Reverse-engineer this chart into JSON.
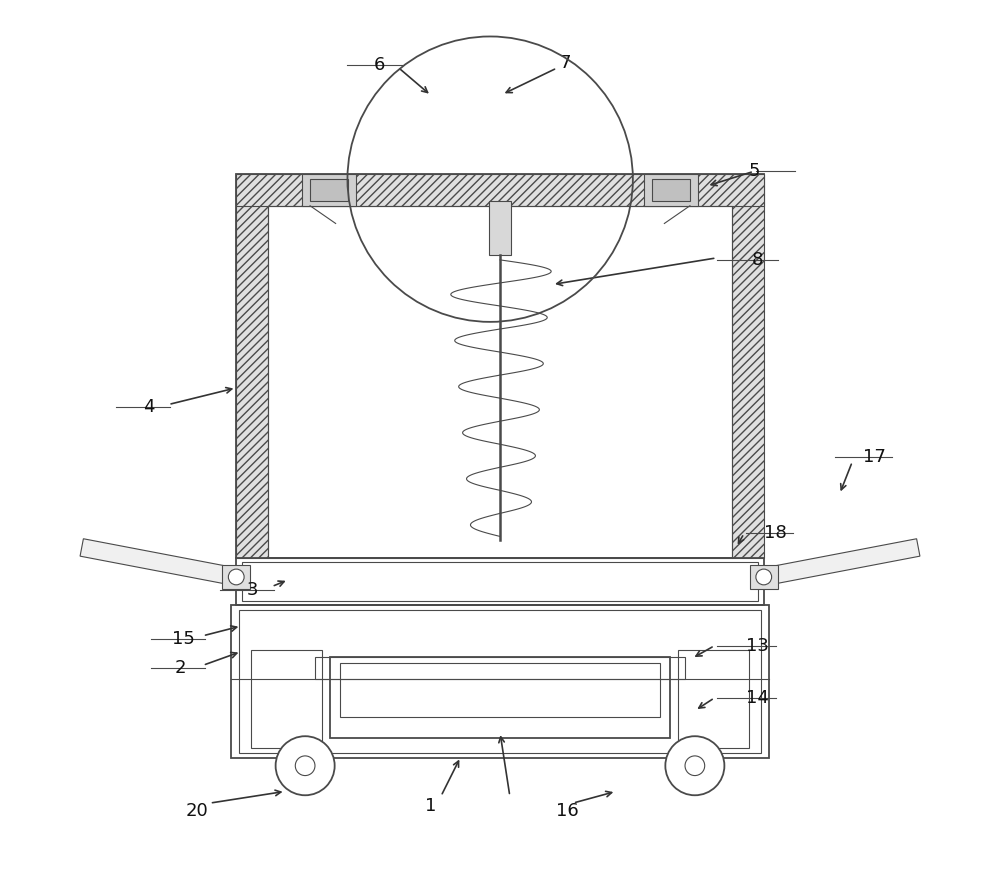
{
  "bg_color": "#ffffff",
  "line_color": "#4a4a4a",
  "fig_width": 10.0,
  "fig_height": 8.77,
  "arrow_color": "#333333",
  "lw_main": 1.3,
  "lw_thin": 0.8,
  "label_fontsize": 13
}
